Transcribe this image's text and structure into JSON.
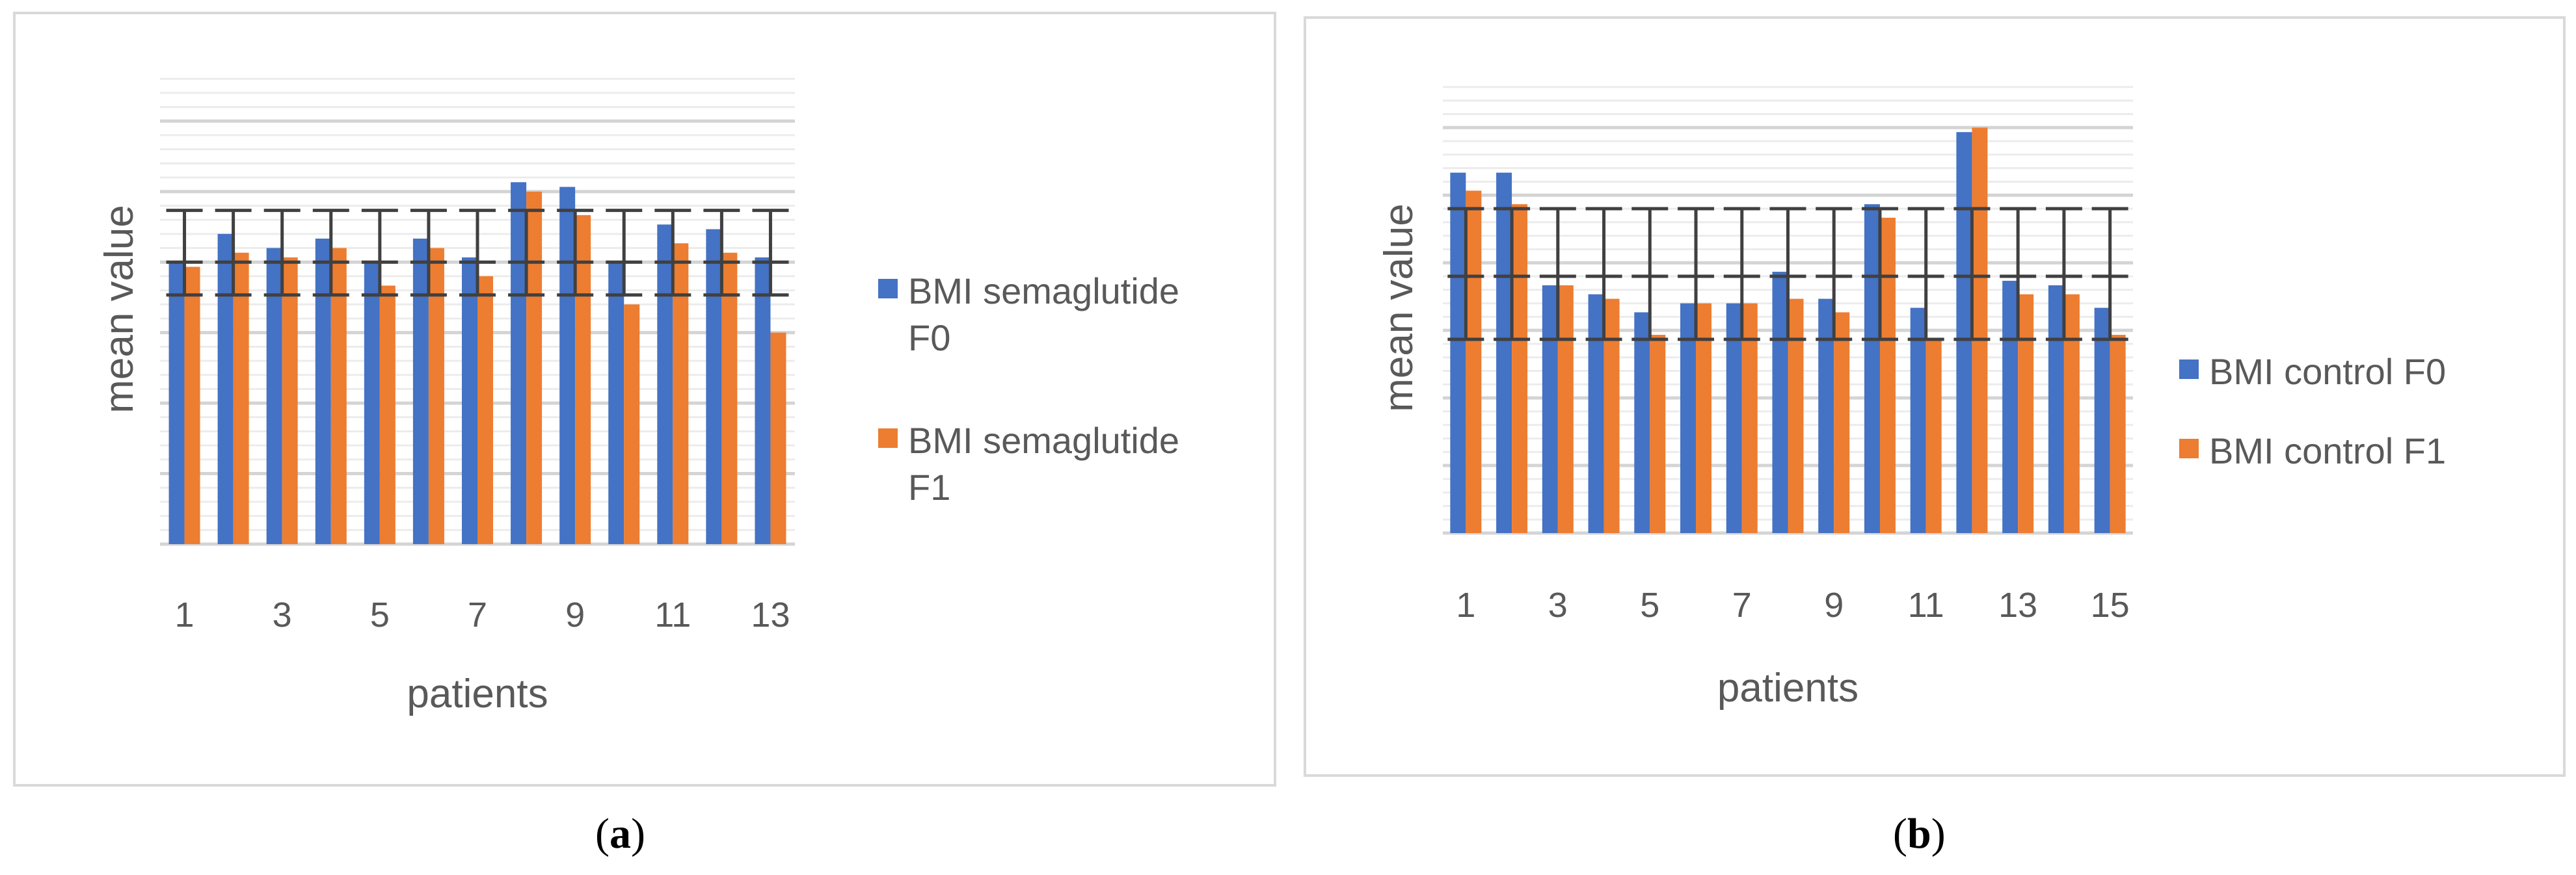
{
  "chart_data": [
    {
      "type": "bar",
      "xlabel": "patients",
      "ylabel": "mean value",
      "categories": [
        "1",
        "2",
        "3",
        "4",
        "5",
        "6",
        "7",
        "8",
        "9",
        "10",
        "11",
        "12",
        "13"
      ],
      "x_tick_labels": [
        "1",
        "3",
        "5",
        "7",
        "9",
        "11",
        "13"
      ],
      "ylim": [
        0,
        100
      ],
      "grid": true,
      "legend_position": "right",
      "error_bars": {
        "mean": 60,
        "low": 53,
        "high": 71
      },
      "series": [
        {
          "name": "BMI semaglutide F0",
          "color": "#4472C4",
          "values": [
            60,
            66,
            63,
            65,
            60,
            65,
            61,
            77,
            76,
            60,
            68,
            67,
            61
          ]
        },
        {
          "name": "BMI semaglutide F1",
          "color": "#ED7D31",
          "values": [
            59,
            62,
            61,
            63,
            55,
            63,
            57,
            75,
            70,
            51,
            64,
            62,
            45
          ]
        }
      ]
    },
    {
      "type": "bar",
      "xlabel": "patients",
      "ylabel": "mean value",
      "categories": [
        "1",
        "2",
        "3",
        "4",
        "5",
        "6",
        "7",
        "8",
        "9",
        "10",
        "11",
        "12",
        "13",
        "14",
        "15"
      ],
      "x_tick_labels": [
        "1",
        "3",
        "5",
        "7",
        "9",
        "11",
        "13",
        "15"
      ],
      "ylim": [
        0,
        100
      ],
      "grid": true,
      "legend_position": "right",
      "error_bars": {
        "mean": 57,
        "low": 43,
        "high": 72
      },
      "series": [
        {
          "name": "BMI control F0",
          "color": "#4472C4",
          "values": [
            80,
            80,
            55,
            53,
            49,
            51,
            51,
            58,
            52,
            73,
            50,
            89,
            56,
            55,
            50
          ]
        },
        {
          "name": "BMI control F1",
          "color": "#ED7D31",
          "values": [
            76,
            73,
            55,
            52,
            44,
            51,
            51,
            52,
            49,
            70,
            43,
            90,
            53,
            53,
            44
          ]
        }
      ]
    }
  ],
  "captions": [
    "a",
    "b"
  ]
}
